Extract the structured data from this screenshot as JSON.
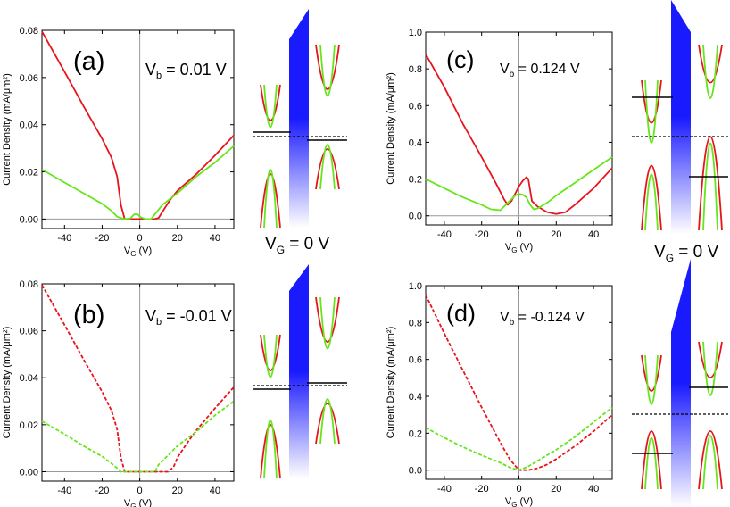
{
  "figure": {
    "vg_label_left": "V",
    "vg_label_left_sub": "G",
    "vg_label_left_rest": " = 0 V",
    "vg_label_right": "V",
    "vg_label_right_sub": "G",
    "vg_label_right_rest": " = 0 V"
  },
  "colors": {
    "red": "#e8141c",
    "green": "#66e61a",
    "blue": "#1a1aff",
    "axis": "#000000",
    "zeroline": "#999999"
  },
  "chart_data": [
    {
      "id": "a",
      "type": "line",
      "panel_label": "(a)",
      "bias_prefix": "V",
      "bias_sub": "b",
      "bias_value": " = 0.01 V",
      "xlabel": "V",
      "xlabel_sub": "G",
      "xlabel_unit": " (V)",
      "ylabel": "Current Density (mA/μm²)",
      "xlim": [
        -52,
        50
      ],
      "ylim": [
        -0.004,
        0.08
      ],
      "xticks": [
        -40,
        -20,
        0,
        20,
        40
      ],
      "xtick_labels": [
        "-40",
        "-20",
        "0",
        "20",
        "40"
      ],
      "yticks": [
        0.0,
        0.02,
        0.04,
        0.06,
        0.08
      ],
      "ytick_labels": [
        "0.00",
        "0.02",
        "0.04",
        "0.06",
        "0.08"
      ],
      "series": [
        {
          "name": "red",
          "color": "#e8141c",
          "dashed": false,
          "x": [
            -52,
            -40,
            -30,
            -20,
            -15,
            -12,
            -10,
            -8,
            0,
            8,
            10,
            12,
            16,
            20,
            30,
            40,
            50
          ],
          "y": [
            0.0795,
            0.0625,
            0.048,
            0.034,
            0.026,
            0.018,
            0.006,
            0.0,
            0.0,
            0.0,
            0.0005,
            0.003,
            0.008,
            0.012,
            0.019,
            0.027,
            0.0355
          ]
        },
        {
          "name": "green",
          "color": "#66e61a",
          "dashed": false,
          "x": [
            -52,
            -40,
            -30,
            -20,
            -15,
            -12,
            -8,
            -5,
            -3,
            -1,
            0,
            3,
            6,
            8,
            12,
            20,
            30,
            40,
            50
          ],
          "y": [
            0.021,
            0.0155,
            0.011,
            0.0065,
            0.0035,
            0.001,
            0.0,
            0.0003,
            0.002,
            0.002,
            0.001,
            0.0,
            0.0,
            0.002,
            0.006,
            0.011,
            0.018,
            0.024,
            0.031
          ]
        }
      ]
    },
    {
      "id": "b",
      "type": "line",
      "panel_label": "(b)",
      "bias_prefix": "V",
      "bias_sub": "b",
      "bias_value": " = -0.01 V",
      "xlabel": "V",
      "xlabel_sub": "G",
      "xlabel_unit": " (V)",
      "ylabel": "Current Density (mA/μm²)",
      "xlim": [
        -52,
        50
      ],
      "ylim": [
        -0.004,
        0.08
      ],
      "xticks": [
        -40,
        -20,
        0,
        20,
        40
      ],
      "xtick_labels": [
        "-40",
        "-20",
        "0",
        "20",
        "40"
      ],
      "yticks": [
        0.0,
        0.02,
        0.04,
        0.06,
        0.08
      ],
      "ytick_labels": [
        "0.00",
        "0.02",
        "0.04",
        "0.06",
        "0.08"
      ],
      "series": [
        {
          "name": "red",
          "color": "#e8141c",
          "dashed": true,
          "x": [
            -52,
            -40,
            -30,
            -20,
            -15,
            -12,
            -10,
            -8,
            0,
            15,
            18,
            20,
            25,
            30,
            40,
            50
          ],
          "y": [
            0.0795,
            0.0625,
            0.048,
            0.034,
            0.026,
            0.018,
            0.006,
            0.0,
            0.0,
            0.0,
            0.002,
            0.006,
            0.012,
            0.0175,
            0.027,
            0.036
          ]
        },
        {
          "name": "green",
          "color": "#66e61a",
          "dashed": true,
          "x": [
            -52,
            -40,
            -30,
            -20,
            -15,
            -12,
            -10,
            -8,
            0,
            8,
            10,
            15,
            20,
            30,
            40,
            50
          ],
          "y": [
            0.0215,
            0.016,
            0.011,
            0.0065,
            0.0035,
            0.0015,
            0.0,
            0.0,
            0.0,
            0.0,
            0.003,
            0.007,
            0.011,
            0.017,
            0.024,
            0.03
          ]
        }
      ]
    },
    {
      "id": "c",
      "type": "line",
      "panel_label": "(c)",
      "bias_prefix": "V",
      "bias_sub": "b",
      "bias_value": " = 0.124 V",
      "xlabel": "V",
      "xlabel_sub": "G",
      "xlabel_unit": " (V)",
      "ylabel": "Current Density (mA/μm²)",
      "xlim": [
        -50,
        50
      ],
      "ylim": [
        -0.05,
        1.0
      ],
      "xticks": [
        -40,
        -20,
        0,
        20,
        40
      ],
      "xtick_labels": [
        "-40",
        "-20",
        "0",
        "20",
        "40"
      ],
      "yticks": [
        0.0,
        0.2,
        0.4,
        0.6,
        0.8,
        1.0
      ],
      "ytick_labels": [
        "0.0",
        "0.2",
        "0.4",
        "0.6",
        "0.8",
        "1.0"
      ],
      "series": [
        {
          "name": "red",
          "color": "#e8141c",
          "dashed": false,
          "x": [
            -50,
            -40,
            -30,
            -20,
            -12,
            -8,
            -6,
            -4,
            -2,
            0,
            2,
            4,
            5,
            6,
            7,
            8,
            10,
            15,
            20,
            25,
            30,
            40,
            50
          ],
          "y": [
            0.88,
            0.7,
            0.5,
            0.32,
            0.17,
            0.09,
            0.06,
            0.08,
            0.12,
            0.16,
            0.19,
            0.21,
            0.2,
            0.14,
            0.08,
            0.07,
            0.05,
            0.02,
            0.01,
            0.02,
            0.06,
            0.15,
            0.26
          ]
        },
        {
          "name": "green",
          "color": "#66e61a",
          "dashed": false,
          "x": [
            -50,
            -40,
            -30,
            -20,
            -15,
            -10,
            -5,
            -2,
            0,
            2,
            4,
            6,
            8,
            10,
            15,
            20,
            30,
            40,
            50
          ],
          "y": [
            0.2,
            0.15,
            0.1,
            0.06,
            0.035,
            0.03,
            0.08,
            0.11,
            0.12,
            0.115,
            0.1,
            0.06,
            0.035,
            0.04,
            0.07,
            0.11,
            0.18,
            0.25,
            0.32
          ]
        }
      ]
    },
    {
      "id": "d",
      "type": "line",
      "panel_label": "(d)",
      "bias_prefix": "V",
      "bias_sub": "b",
      "bias_value": " = -0.124 V",
      "xlabel": "V",
      "xlabel_sub": "G",
      "xlabel_unit": " (V)",
      "ylabel": "Current Density (mA/μm²)",
      "xlim": [
        -50,
        50
      ],
      "ylim": [
        -0.05,
        1.0
      ],
      "xticks": [
        -40,
        -20,
        0,
        20,
        40
      ],
      "xtick_labels": [
        "-40",
        "-20",
        "0",
        "20",
        "40"
      ],
      "yticks": [
        0.0,
        0.2,
        0.4,
        0.6,
        0.8,
        1.0
      ],
      "ytick_labels": [
        "0.0",
        "0.2",
        "0.4",
        "0.6",
        "0.8",
        "1.0"
      ],
      "series": [
        {
          "name": "red",
          "color": "#e8141c",
          "dashed": true,
          "x": [
            -50,
            -40,
            -30,
            -20,
            -10,
            -5,
            0,
            5,
            10,
            15,
            20,
            30,
            40,
            50
          ],
          "y": [
            0.95,
            0.74,
            0.54,
            0.34,
            0.15,
            0.06,
            0.0,
            0.0,
            0.01,
            0.03,
            0.06,
            0.13,
            0.21,
            0.3
          ]
        },
        {
          "name": "green",
          "color": "#66e61a",
          "dashed": true,
          "x": [
            -50,
            -40,
            -30,
            -20,
            -10,
            -5,
            0,
            5,
            10,
            20,
            30,
            40,
            50
          ],
          "y": [
            0.23,
            0.175,
            0.125,
            0.08,
            0.04,
            0.015,
            0.0,
            0.02,
            0.05,
            0.11,
            0.18,
            0.26,
            0.34
          ]
        }
      ]
    }
  ]
}
